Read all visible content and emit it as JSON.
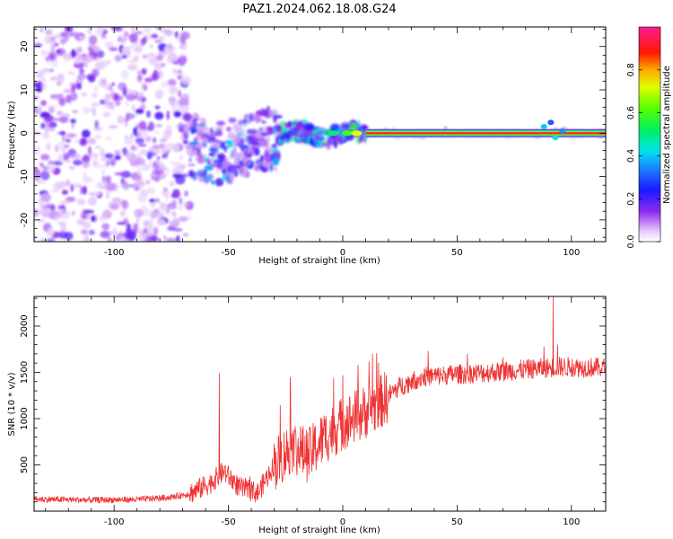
{
  "chart_data": [
    {
      "type": "heatmap",
      "title": "PAZ1.2024.062.18.08.G24",
      "xlabel": "Height of straight line (km)",
      "ylabel": "Frequency (Hz)",
      "xlim": [
        -135,
        115
      ],
      "ylim": [
        -25,
        24.5
      ],
      "xticks": [
        -100,
        -50,
        0,
        50,
        100
      ],
      "yticks": [
        -20,
        -10,
        0,
        10,
        20
      ],
      "colorbar": {
        "label": "Normalized spectral amplitude",
        "range": [
          0,
          1
        ],
        "ticks": [
          "0.0",
          "0.2",
          "0.4",
          "0.6",
          "0.8"
        ],
        "colormap": "gist_ncar-like (white → purple → blue → cyan → green → yellow → red → pink)"
      },
      "regions": [
        {
          "x_range": [
            -135,
            -67
          ],
          "freq_spread_hz": [
            -25,
            24.5
          ],
          "amplitude": "low, scattered"
        },
        {
          "x_range": [
            -67,
            -28
          ],
          "freq_spread_hz": [
            -9,
            5
          ],
          "amplitude": "low–medium, scattered"
        },
        {
          "x_range": [
            -28,
            10
          ],
          "freq_spread_hz": [
            -2,
            2
          ],
          "amplitude": "medium, wavy band"
        },
        {
          "x_range": [
            10,
            115
          ],
          "freq_spread_hz": [
            -0.5,
            0.5
          ],
          "amplitude": "high, steady line at 0 Hz"
        }
      ],
      "signal_line": {
        "frequency_hz": 0,
        "x_start": 10,
        "x_end": 115,
        "peak_amplitude": 1.0
      }
    },
    {
      "type": "line",
      "xlabel": "Height of straight line (km)",
      "ylabel": "SNR (10 * v/v)",
      "xlim": [
        -135,
        115
      ],
      "ylim": [
        0,
        2320
      ],
      "xticks": [
        -100,
        -50,
        0,
        50,
        100
      ],
      "yticks": [
        500,
        1000,
        1500,
        2000
      ],
      "line_color": "#ee3333",
      "trend": [
        {
          "x": -135,
          "y": 130
        },
        {
          "x": -110,
          "y": 120
        },
        {
          "x": -90,
          "y": 125
        },
        {
          "x": -75,
          "y": 150
        },
        {
          "x": -67,
          "y": 190
        },
        {
          "x": -58,
          "y": 300
        },
        {
          "x": -52,
          "y": 430
        },
        {
          "x": -45,
          "y": 250
        },
        {
          "x": -37,
          "y": 200
        },
        {
          "x": -30,
          "y": 500
        },
        {
          "x": -22,
          "y": 700
        },
        {
          "x": -15,
          "y": 600
        },
        {
          "x": -8,
          "y": 800
        },
        {
          "x": 0,
          "y": 950
        },
        {
          "x": 8,
          "y": 1050
        },
        {
          "x": 15,
          "y": 1150
        },
        {
          "x": 25,
          "y": 1350
        },
        {
          "x": 35,
          "y": 1450
        },
        {
          "x": 50,
          "y": 1480
        },
        {
          "x": 65,
          "y": 1500
        },
        {
          "x": 80,
          "y": 1530
        },
        {
          "x": 95,
          "y": 1560
        },
        {
          "x": 115,
          "y": 1550
        }
      ],
      "peaks": [
        {
          "x": -54,
          "y": 1490
        },
        {
          "x": 92,
          "y": 2320
        },
        {
          "x": 94,
          "y": 1800
        },
        {
          "x": 88,
          "y": 1780
        },
        {
          "x": 13,
          "y": 1700
        },
        {
          "x": -23,
          "y": 1450
        },
        {
          "x": 16,
          "y": 1330
        },
        {
          "x": 0,
          "y": 1470
        }
      ]
    }
  ]
}
